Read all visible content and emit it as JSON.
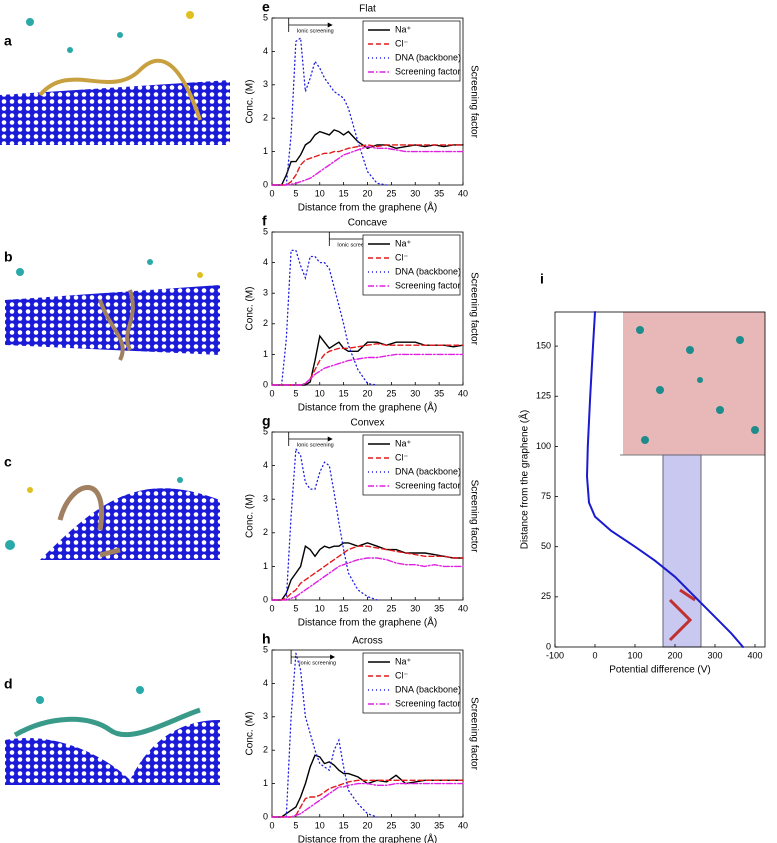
{
  "images": [
    {
      "label": "a"
    },
    {
      "label": "b"
    },
    {
      "label": "c"
    },
    {
      "label": "d"
    }
  ],
  "chart_data": [
    {
      "type": "line",
      "label": "e",
      "title": "Flat",
      "xlabel": "Distance from the graphene (Å)",
      "ylabel": "Conc. (M)",
      "y2label": "Screening factor",
      "legend": "upper right",
      "annotation": {
        "text": "Ionic screening",
        "x": 3.5
      },
      "x": [
        0,
        2,
        3,
        4,
        5,
        6,
        7,
        8,
        9,
        10,
        11,
        12,
        13,
        14,
        15,
        16,
        18,
        20,
        22,
        24,
        26,
        28,
        30,
        32,
        34,
        36,
        38,
        40
      ],
      "xlim": [
        0,
        40
      ],
      "xticks": [
        0,
        5,
        10,
        15,
        20,
        25,
        30,
        35,
        40
      ],
      "ylim": [
        0,
        5
      ],
      "yticks": [
        0,
        1,
        2,
        3,
        4,
        5
      ],
      "series": [
        {
          "name": "Na⁺",
          "color": "#000000",
          "style": "solid",
          "values": [
            0,
            0,
            0.3,
            0.7,
            0.7,
            0.9,
            1.2,
            1.3,
            1.5,
            1.6,
            1.55,
            1.5,
            1.65,
            1.6,
            1.5,
            1.6,
            1.3,
            1.1,
            1.2,
            1.2,
            1.1,
            1.15,
            1.2,
            1.15,
            1.2,
            1.15,
            1.2,
            1.2
          ]
        },
        {
          "name": "Cl⁻",
          "color": "#e31a1c",
          "style": "dashed",
          "values": [
            0,
            0,
            0,
            0.1,
            0.3,
            0.6,
            0.75,
            0.8,
            0.85,
            0.9,
            0.95,
            0.95,
            1.0,
            1.0,
            1.05,
            1.1,
            1.15,
            1.2,
            1.15,
            1.2,
            1.2,
            1.2,
            1.2,
            1.2,
            1.2,
            1.2,
            1.2,
            1.2
          ]
        },
        {
          "name": "DNA (backbone)",
          "color": "#2020e0",
          "style": "dotted",
          "values": [
            null,
            null,
            0,
            1.5,
            4.3,
            4.4,
            2.8,
            3.2,
            3.7,
            3.5,
            3.2,
            3.0,
            2.8,
            2.7,
            2.6,
            2.3,
            1.3,
            0.4,
            0.05,
            0,
            null,
            null,
            null,
            null,
            null,
            null,
            null,
            null
          ]
        },
        {
          "name": "Screening factor",
          "color": "#e020e0",
          "style": "dashdot",
          "values": [
            0,
            0,
            0,
            0.02,
            0.05,
            0.1,
            0.15,
            0.2,
            0.3,
            0.4,
            0.5,
            0.6,
            0.7,
            0.8,
            0.9,
            0.95,
            1.05,
            1.15,
            1.1,
            1.1,
            1.05,
            1.0,
            1.0,
            1.0,
            1.0,
            1.0,
            1.0,
            1.0
          ]
        }
      ]
    },
    {
      "type": "line",
      "label": "f",
      "title": "Concave",
      "xlabel": "Distance from the graphene (Å)",
      "ylabel": "Conc. (M)",
      "y2label": "Screening factor",
      "legend": "upper right",
      "annotation": {
        "text": "Ionic screening",
        "x": 12
      },
      "x": [
        0,
        2,
        3,
        4,
        5,
        6,
        7,
        8,
        9,
        10,
        11,
        12,
        13,
        14,
        15,
        16,
        18,
        20,
        22,
        24,
        26,
        28,
        30,
        32,
        34,
        36,
        38,
        40
      ],
      "xlim": [
        0,
        40
      ],
      "xticks": [
        0,
        5,
        10,
        15,
        20,
        25,
        30,
        35,
        40
      ],
      "ylim": [
        0,
        5
      ],
      "yticks": [
        0,
        1,
        2,
        3,
        4,
        5
      ],
      "series": [
        {
          "name": "Na⁺",
          "color": "#000000",
          "style": "solid",
          "values": [
            0,
            0,
            0,
            0,
            0,
            0,
            0,
            0.1,
            0.8,
            1.6,
            1.4,
            1.2,
            1.3,
            1.4,
            1.2,
            1.1,
            1.1,
            1.4,
            1.4,
            1.3,
            1.4,
            1.4,
            1.4,
            1.3,
            1.3,
            1.3,
            1.25,
            1.3
          ]
        },
        {
          "name": "Cl⁻",
          "color": "#e31a1c",
          "style": "dashed",
          "values": [
            0,
            0,
            0,
            0,
            0,
            0,
            0.05,
            0.2,
            0.5,
            0.8,
            1.0,
            1.1,
            1.15,
            1.2,
            1.2,
            1.2,
            1.25,
            1.3,
            1.35,
            1.3,
            1.3,
            1.3,
            1.3,
            1.3,
            1.3,
            1.3,
            1.3,
            1.3
          ]
        },
        {
          "name": "DNA (backbone)",
          "color": "#2020e0",
          "style": "dotted",
          "values": [
            null,
            0,
            1.5,
            4.4,
            4.4,
            3.9,
            3.5,
            4.2,
            4.2,
            4.0,
            4.0,
            3.8,
            3.2,
            2.6,
            2.0,
            1.3,
            0.5,
            0.05,
            0,
            null,
            null,
            null,
            null,
            null,
            null,
            null,
            null,
            null
          ]
        },
        {
          "name": "Screening factor",
          "color": "#e020e0",
          "style": "dashdot",
          "values": [
            0,
            0,
            0,
            0,
            0,
            0,
            0.05,
            0.2,
            0.35,
            0.45,
            0.55,
            0.6,
            0.65,
            0.7,
            0.75,
            0.8,
            0.85,
            0.9,
            0.9,
            0.95,
            1.0,
            1.0,
            1.0,
            1.0,
            1.0,
            1.0,
            1.0,
            1.0
          ]
        }
      ]
    },
    {
      "type": "line",
      "label": "g",
      "title": "Convex",
      "xlabel": "Distance from the graphene (Å)",
      "ylabel": "Conc. (M)",
      "y2label": "Screening factor",
      "legend": "upper right",
      "annotation": {
        "text": "Ionic screening",
        "x": 3.5
      },
      "x": [
        0,
        2,
        3,
        4,
        5,
        6,
        7,
        8,
        9,
        10,
        11,
        12,
        13,
        14,
        15,
        16,
        18,
        20,
        22,
        24,
        26,
        28,
        30,
        32,
        34,
        36,
        38,
        40
      ],
      "xlim": [
        0,
        40
      ],
      "xticks": [
        0,
        5,
        10,
        15,
        20,
        25,
        30,
        35,
        40
      ],
      "ylim": [
        0,
        5
      ],
      "yticks": [
        0,
        1,
        2,
        3,
        4,
        5
      ],
      "series": [
        {
          "name": "Na⁺",
          "color": "#000000",
          "style": "solid",
          "values": [
            0,
            0,
            0.2,
            0.6,
            0.8,
            1.0,
            1.6,
            1.5,
            1.3,
            1.5,
            1.6,
            1.55,
            1.6,
            1.6,
            1.7,
            1.7,
            1.6,
            1.7,
            1.6,
            1.5,
            1.5,
            1.4,
            1.4,
            1.4,
            1.35,
            1.3,
            1.25,
            1.25
          ]
        },
        {
          "name": "Cl⁻",
          "color": "#e31a1c",
          "style": "dashed",
          "values": [
            0,
            0,
            0.05,
            0.2,
            0.3,
            0.5,
            0.6,
            0.7,
            0.8,
            0.9,
            1.0,
            1.1,
            1.2,
            1.3,
            1.4,
            1.5,
            1.6,
            1.6,
            1.55,
            1.5,
            1.45,
            1.4,
            1.35,
            1.3,
            1.3,
            1.3,
            1.25,
            1.25
          ]
        },
        {
          "name": "DNA (backbone)",
          "color": "#2020e0",
          "style": "dotted",
          "values": [
            null,
            null,
            0,
            2.5,
            4.5,
            4.3,
            3.5,
            3.3,
            3.3,
            3.8,
            4.1,
            4.0,
            3.2,
            2.3,
            1.5,
            0.8,
            0.3,
            0.1,
            0,
            null,
            null,
            null,
            null,
            null,
            null,
            null,
            null,
            null
          ]
        },
        {
          "name": "Screening factor",
          "color": "#e020e0",
          "style": "dashdot",
          "values": [
            0,
            0,
            0,
            0.05,
            0.1,
            0.2,
            0.3,
            0.4,
            0.5,
            0.6,
            0.7,
            0.8,
            0.9,
            1.0,
            1.05,
            1.1,
            1.2,
            1.25,
            1.25,
            1.2,
            1.1,
            1.05,
            1.05,
            1.0,
            1.05,
            1.0,
            1.0,
            1.0
          ]
        }
      ]
    },
    {
      "type": "line",
      "label": "h",
      "title": "Across",
      "xlabel": "Distance from the graphene (Å)",
      "ylabel": "Conc. (M)",
      "y2label": "Screening factor",
      "legend": "upper right",
      "annotation": {
        "text": "Ionic screening",
        "x": 4
      },
      "x": [
        0,
        2,
        3,
        4,
        5,
        6,
        7,
        8,
        9,
        10,
        11,
        12,
        13,
        14,
        15,
        16,
        18,
        20,
        22,
        24,
        26,
        28,
        30,
        32,
        34,
        36,
        38,
        40
      ],
      "xlim": [
        0,
        40
      ],
      "xticks": [
        0,
        5,
        10,
        15,
        20,
        25,
        30,
        35,
        40
      ],
      "ylim": [
        0,
        5
      ],
      "yticks": [
        0,
        1,
        2,
        3,
        4,
        5
      ],
      "series": [
        {
          "name": "Na⁺",
          "color": "#000000",
          "style": "solid",
          "values": [
            0,
            0,
            0.1,
            0.2,
            0.3,
            0.6,
            1.0,
            1.5,
            1.85,
            1.8,
            1.6,
            1.65,
            1.55,
            1.4,
            1.3,
            1.3,
            1.2,
            1.0,
            1.1,
            1.05,
            1.25,
            1.0,
            1.05,
            1.1,
            1.1,
            1.1,
            1.1,
            1.1
          ]
        },
        {
          "name": "Cl⁻",
          "color": "#e31a1c",
          "style": "dashed",
          "values": [
            0,
            0,
            0,
            0,
            0.05,
            0.3,
            0.55,
            0.6,
            0.6,
            0.65,
            0.75,
            0.85,
            0.9,
            0.95,
            1.0,
            1.05,
            1.1,
            1.1,
            1.1,
            1.1,
            1.1,
            1.1,
            1.1,
            1.1,
            1.1,
            1.1,
            1.1,
            1.1
          ]
        },
        {
          "name": "DNA (backbone)",
          "color": "#2020e0",
          "style": "dotted",
          "values": [
            null,
            null,
            0,
            3,
            4.9,
            4.4,
            3.0,
            2.5,
            2.0,
            1.6,
            1.5,
            1.4,
            2.0,
            2.3,
            1.5,
            0.8,
            0.4,
            0.1,
            0,
            null,
            null,
            null,
            null,
            null,
            null,
            null,
            null,
            null
          ]
        },
        {
          "name": "Screening factor",
          "color": "#e020e0",
          "style": "dashdot",
          "values": [
            0,
            0,
            0,
            0,
            0.05,
            0.1,
            0.2,
            0.3,
            0.4,
            0.5,
            0.6,
            0.7,
            0.8,
            0.9,
            0.9,
            0.95,
            1.0,
            1.0,
            0.95,
            0.95,
            1.0,
            1.0,
            1.0,
            1.0,
            1.0,
            1.0,
            1.0,
            1.0
          ]
        }
      ]
    },
    {
      "type": "line",
      "label": "i",
      "xlabel": "Potential difference (V)",
      "ylabel": "Distance from the graphene (Å)",
      "x": [
        0,
        -5,
        -12,
        -18,
        -20,
        -15,
        0,
        40,
        100,
        150,
        200,
        250,
        300,
        340,
        370
      ],
      "xlim": [
        -100,
        425
      ],
      "xticks": [
        -100,
        0,
        100,
        200,
        300,
        400
      ],
      "ylim": [
        0,
        167
      ],
      "yticks": [
        0,
        25,
        50,
        75,
        100,
        125,
        150
      ],
      "series": [
        {
          "color": "#1a1ad0",
          "style": "thick",
          "values": [
            167,
            150,
            125,
            100,
            85,
            72,
            65,
            58,
            50,
            43,
            35,
            25,
            15,
            7,
            0
          ]
        }
      ]
    }
  ]
}
